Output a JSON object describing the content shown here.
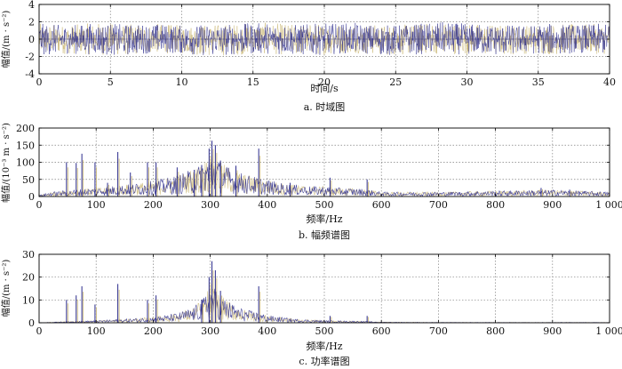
{
  "chart_data": [
    {
      "type": "line",
      "caption": "a. 时域图",
      "xlabel": "时间/s",
      "ylabel": "幅值/(m · s⁻²)",
      "xlim": [
        0,
        40
      ],
      "ylim": [
        -4,
        4
      ],
      "xticks": [
        0,
        5,
        10,
        15,
        20,
        25,
        30,
        35,
        40
      ],
      "yticks": [
        4,
        2,
        0,
        -2,
        -4
      ],
      "xtick_labels": [
        "0",
        "5",
        "10",
        "15",
        "20",
        "25",
        "30",
        "35",
        "40"
      ],
      "ytick_labels": [
        "4",
        "2",
        "0",
        "-2",
        "-4"
      ],
      "grid": true,
      "series": [
        {
          "color": "#1f1f8f",
          "description_range": "dense noise between about -2 and 2",
          "x": [
            0,
            2,
            4,
            6,
            8,
            10,
            12,
            14,
            16,
            18,
            20,
            22,
            24,
            26,
            28,
            30,
            32,
            34,
            36,
            38,
            40
          ],
          "y_max": [
            1.8,
            1.6,
            1.9,
            1.7,
            1.8,
            1.6,
            1.7,
            1.8,
            1.9,
            1.7,
            1.8,
            1.9,
            1.6,
            1.7,
            2.0,
            1.8,
            1.7,
            1.6,
            1.8,
            1.7,
            1.8
          ],
          "y_min": [
            -1.9,
            -1.7,
            -1.8,
            -1.9,
            -1.6,
            -1.7,
            -2.0,
            -1.8,
            -1.7,
            -1.9,
            -1.8,
            -1.6,
            -1.9,
            -1.8,
            -1.7,
            -1.8,
            -1.9,
            -1.7,
            -1.8,
            -1.6,
            -1.8
          ]
        },
        {
          "color": "#c9b97a"
        }
      ]
    },
    {
      "type": "line",
      "caption": "b. 幅频谱图",
      "xlabel": "频率/Hz",
      "ylabel": "幅值/(10⁻³ m · s⁻²)",
      "xlim": [
        0,
        1000
      ],
      "ylim": [
        0,
        200
      ],
      "xticks": [
        0,
        100,
        200,
        300,
        400,
        500,
        600,
        700,
        800,
        900,
        1000
      ],
      "yticks": [
        200,
        150,
        100,
        50,
        0
      ],
      "xtick_labels": [
        "0",
        "100",
        "200",
        "300",
        "400",
        "500",
        "600",
        "700",
        "800",
        "900",
        "1 000"
      ],
      "ytick_labels": [
        "200",
        "150",
        "100",
        "50",
        "0"
      ],
      "grid": true,
      "envelope": {
        "x": [
          0,
          20,
          40,
          60,
          80,
          100,
          120,
          140,
          160,
          180,
          200,
          220,
          240,
          260,
          280,
          290,
          300,
          310,
          320,
          340,
          360,
          380,
          400,
          420,
          440,
          460,
          480,
          500,
          520,
          540,
          560,
          580,
          600,
          650,
          700,
          750,
          800,
          850,
          900,
          950,
          1000
        ],
        "y": [
          2,
          8,
          10,
          12,
          14,
          15,
          18,
          20,
          22,
          25,
          28,
          32,
          38,
          45,
          55,
          65,
          75,
          70,
          60,
          48,
          40,
          35,
          30,
          25,
          22,
          20,
          18,
          18,
          16,
          15,
          14,
          12,
          8,
          8,
          8,
          9,
          10,
          11,
          12,
          10,
          8
        ]
      },
      "peaks": [
        {
          "x": 48,
          "y": 100
        },
        {
          "x": 65,
          "y": 98
        },
        {
          "x": 75,
          "y": 125
        },
        {
          "x": 98,
          "y": 100
        },
        {
          "x": 120,
          "y": 40
        },
        {
          "x": 138,
          "y": 130
        },
        {
          "x": 160,
          "y": 70
        },
        {
          "x": 190,
          "y": 100
        },
        {
          "x": 205,
          "y": 100
        },
        {
          "x": 242,
          "y": 85
        },
        {
          "x": 272,
          "y": 78
        },
        {
          "x": 285,
          "y": 92
        },
        {
          "x": 298,
          "y": 140
        },
        {
          "x": 303,
          "y": 163
        },
        {
          "x": 309,
          "y": 150
        },
        {
          "x": 318,
          "y": 105
        },
        {
          "x": 345,
          "y": 90
        },
        {
          "x": 385,
          "y": 140
        },
        {
          "x": 440,
          "y": 40
        },
        {
          "x": 510,
          "y": 55
        },
        {
          "x": 575,
          "y": 50
        },
        {
          "x": 880,
          "y": 25
        },
        {
          "x": 930,
          "y": 20
        }
      ]
    },
    {
      "type": "line",
      "caption": "c. 功率谱图",
      "xlabel": "频率/Hz",
      "ylabel": "幅值/(m · s⁻²)",
      "xlim": [
        0,
        1000
      ],
      "ylim": [
        0,
        30
      ],
      "xticks": [
        0,
        100,
        200,
        300,
        400,
        500,
        600,
        700,
        800,
        900,
        1000
      ],
      "yticks": [
        30,
        20,
        10,
        0
      ],
      "xtick_labels": [
        "0",
        "100",
        "200",
        "300",
        "400",
        "500",
        "600",
        "700",
        "800",
        "900",
        "1 000"
      ],
      "ytick_labels": [
        "30",
        "20",
        "10",
        "0"
      ],
      "grid": true,
      "envelope": {
        "x": [
          0,
          40,
          100,
          150,
          200,
          240,
          270,
          290,
          300,
          310,
          320,
          340,
          360,
          380,
          400,
          450,
          500,
          550,
          600,
          700,
          800,
          900,
          1000
        ],
        "y": [
          0,
          0.3,
          0.6,
          1.0,
          1.5,
          2.5,
          4,
          7,
          10,
          9,
          7,
          5,
          3.5,
          3,
          2,
          1,
          0.6,
          0.5,
          0.2,
          0.1,
          0.1,
          0.1,
          0.1
        ]
      },
      "peaks": [
        {
          "x": 48,
          "y": 10
        },
        {
          "x": 65,
          "y": 12
        },
        {
          "x": 75,
          "y": 16
        },
        {
          "x": 98,
          "y": 8
        },
        {
          "x": 138,
          "y": 17
        },
        {
          "x": 190,
          "y": 10
        },
        {
          "x": 205,
          "y": 12
        },
        {
          "x": 285,
          "y": 10
        },
        {
          "x": 298,
          "y": 20
        },
        {
          "x": 303,
          "y": 27
        },
        {
          "x": 309,
          "y": 23
        },
        {
          "x": 318,
          "y": 14
        },
        {
          "x": 385,
          "y": 16
        },
        {
          "x": 510,
          "y": 3
        },
        {
          "x": 575,
          "y": 3
        }
      ]
    }
  ],
  "colors": {
    "primary": "#2b2b8c",
    "secondary": "#c8b46e",
    "grid": "#808080"
  }
}
